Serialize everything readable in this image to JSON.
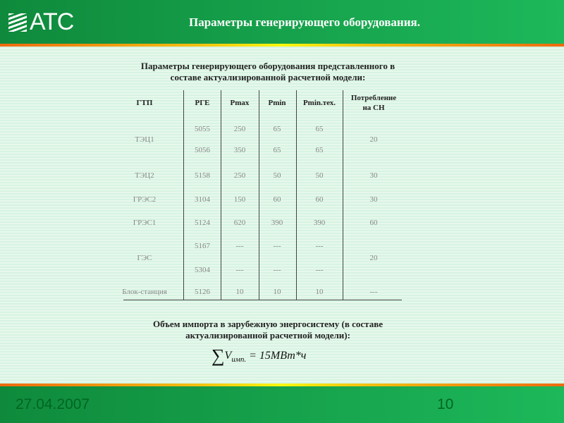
{
  "header": {
    "logo": "АТС",
    "title": "Параметры генерирующего оборудования."
  },
  "caption1": [
    "Параметры генерирующего оборудования представленного в",
    "составе актуализированной расчетной модели:"
  ],
  "table": {
    "headers": [
      "ГТП",
      "РГЕ",
      "Pmax",
      "Pmin",
      "Pmin.тех.",
      "Потребление на СН"
    ],
    "rows": [
      {
        "gtp": "ТЭЦ1",
        "units": [
          [
            "5055",
            "250",
            "65",
            "65"
          ],
          [
            "5056",
            "350",
            "65",
            "65"
          ]
        ],
        "sn": "20"
      },
      {
        "gtp": "ТЭЦ2",
        "units": [
          [
            "5158",
            "250",
            "50",
            "50"
          ]
        ],
        "sn": "30"
      },
      {
        "gtp": "ГРЭС2",
        "units": [
          [
            "3104",
            "150",
            "60",
            "60"
          ]
        ],
        "sn": "30"
      },
      {
        "gtp": "ГРЭС1",
        "units": [
          [
            "5124",
            "620",
            "390",
            "390"
          ]
        ],
        "sn": "60"
      },
      {
        "gtp": "ГЭС",
        "units": [
          [
            "5167",
            "---",
            "---",
            "---"
          ],
          [
            "5304",
            "---",
            "---",
            "---"
          ]
        ],
        "sn": "20"
      },
      {
        "gtp": "Блок-станция",
        "units": [
          [
            "5126",
            "10",
            "10",
            "10"
          ]
        ],
        "sn": "---"
      }
    ]
  },
  "caption2": [
    "Объем импорта в зарубежную энергосистему (в составе",
    "актуализированной расчетной модели):"
  ],
  "formula": "∑V имп. = 15МВт*ч",
  "formula_parts": {
    "sum": "∑",
    "v": "V",
    "sub": "имп.",
    "rhs": "= 15МВт*ч"
  },
  "footer": {
    "date": "27.04.2007",
    "page": "10"
  }
}
